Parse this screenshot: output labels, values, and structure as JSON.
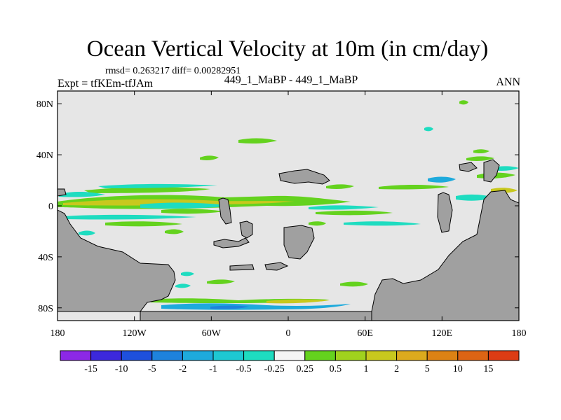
{
  "title": "Ocean Vertical Velocity at 10m (in cm/day)",
  "stats_text": "rmsd= 0.263217 diff= 0.00282951",
  "left_label": "Expt = tfKEm-tfJAm",
  "center_label": "449_1_MaBP - 449_1_MaBP",
  "right_label": "ANN",
  "map": {
    "projection": "cylindrical equidistant",
    "lon_range": [
      -180,
      180
    ],
    "lat_range": [
      -90,
      90
    ],
    "lon_ticks": [
      {
        "value": -180,
        "label": "180"
      },
      {
        "value": -120,
        "label": "120W"
      },
      {
        "value": -60,
        "label": "60W"
      },
      {
        "value": 0,
        "label": "0"
      },
      {
        "value": 60,
        "label": "60E"
      },
      {
        "value": 120,
        "label": "120E"
      },
      {
        "value": 180,
        "label": "180"
      }
    ],
    "lat_ticks": [
      {
        "value": 80,
        "label": "80N"
      },
      {
        "value": 40,
        "label": "40N"
      },
      {
        "value": 0,
        "label": "0"
      },
      {
        "value": -40,
        "label": "40S"
      },
      {
        "value": -80,
        "label": "80S"
      }
    ],
    "background_color": "#e6e6e6",
    "land_color": "#a0a0a0"
  },
  "colorbar": {
    "labels": [
      "-15",
      "-10",
      "-5",
      "-2",
      "-1",
      "-0.5",
      "-0.25",
      "0.25",
      "0.5",
      "1",
      "2",
      "5",
      "10",
      "15"
    ],
    "colors": [
      "#8c28e6",
      "#3c28dc",
      "#1e50dc",
      "#1e82dc",
      "#1eaadc",
      "#1ec8d2",
      "#1edcc0",
      "#f5f5f5",
      "#64d21e",
      "#a0d21e",
      "#c8c81e",
      "#dcaa1e",
      "#dc8214",
      "#dc6414",
      "#dc3c14"
    ]
  }
}
